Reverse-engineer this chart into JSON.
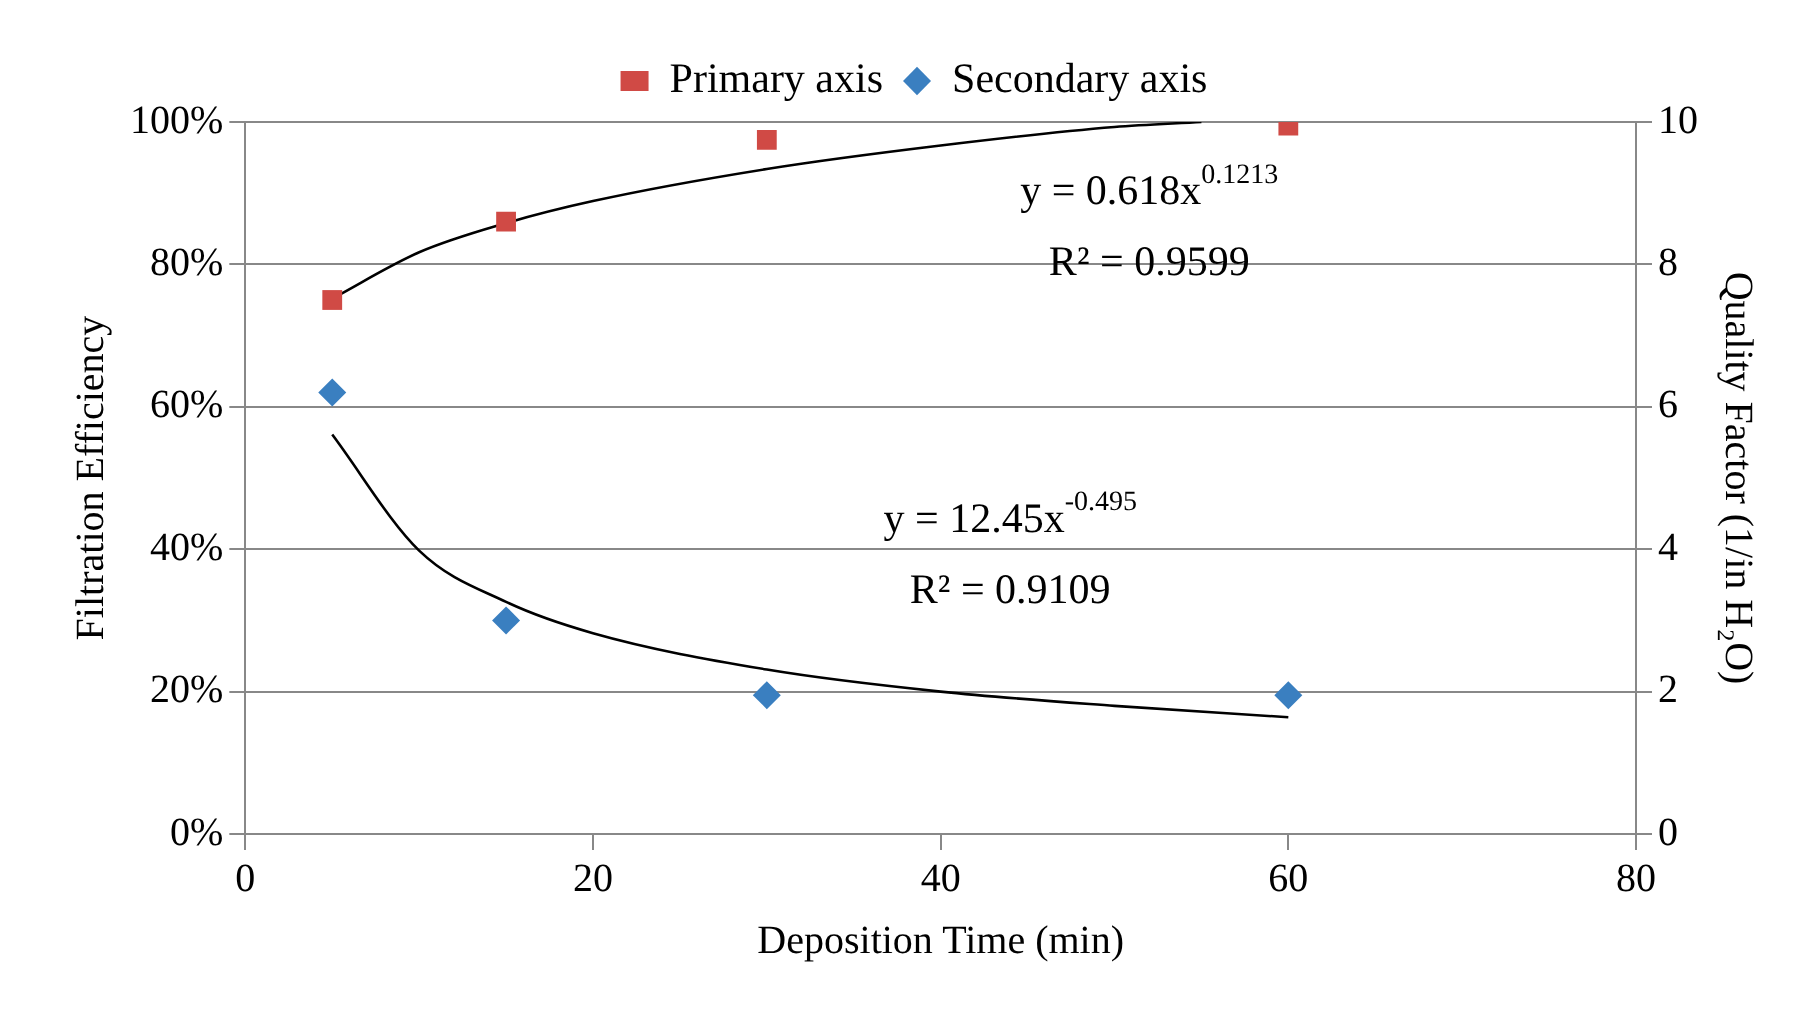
{
  "chart_data": {
    "type": "scatter",
    "xlabel": "Deposition Time (min)",
    "ylabel": "Filtration Efficiency",
    "y2label": "Quality Factor (1/in H₂O)",
    "xlim": [
      0,
      80
    ],
    "xticks": [
      0,
      20,
      40,
      60,
      80
    ],
    "ylim": [
      0,
      100
    ],
    "yticks": [
      {
        "value": 0,
        "label": "0%"
      },
      {
        "value": 20,
        "label": "20%"
      },
      {
        "value": 40,
        "label": "40%"
      },
      {
        "value": 60,
        "label": "60%"
      },
      {
        "value": 80,
        "label": "80%"
      },
      {
        "value": 100,
        "label": "100%"
      }
    ],
    "y2lim": [
      0,
      10
    ],
    "y2ticks": [
      0,
      2,
      4,
      6,
      8,
      10
    ],
    "grid": "y",
    "legend": "top",
    "series": [
      {
        "name": "Primary axis",
        "marker": "square",
        "color": "#d04a45",
        "x": [
          5,
          15,
          30,
          60
        ],
        "values": [
          75,
          86,
          97.5,
          99.5
        ]
      },
      {
        "name": "Secondary axis",
        "marker": "diamond",
        "axis": "y2",
        "color": "#3a7fc0",
        "x": [
          5,
          15,
          30,
          60
        ],
        "values": [
          6.2,
          3.0,
          1.95,
          1.95
        ]
      },
      {
        "type": "line",
        "marker": "none",
        "color": "#000000",
        "x": [
          5,
          10,
          15,
          20,
          30,
          40,
          50,
          55
        ],
        "values": [
          75.2,
          81.7,
          85.8,
          88.9,
          93.4,
          96.7,
          99.3,
          100
        ]
      },
      {
        "type": "line",
        "marker": "none",
        "axis": "y2",
        "color": "#000000",
        "x": [
          5,
          10,
          15,
          20,
          30,
          40,
          50,
          60
        ],
        "values": [
          5.61,
          3.98,
          3.26,
          2.82,
          2.31,
          2.0,
          1.8,
          1.64
        ]
      }
    ],
    "annotations": [
      "y = 0.618x$^{0.1213}$",
      "R² = 0.9599",
      "y = 12.45x$^{-0.495}$",
      "R² = 0.9109"
    ]
  }
}
